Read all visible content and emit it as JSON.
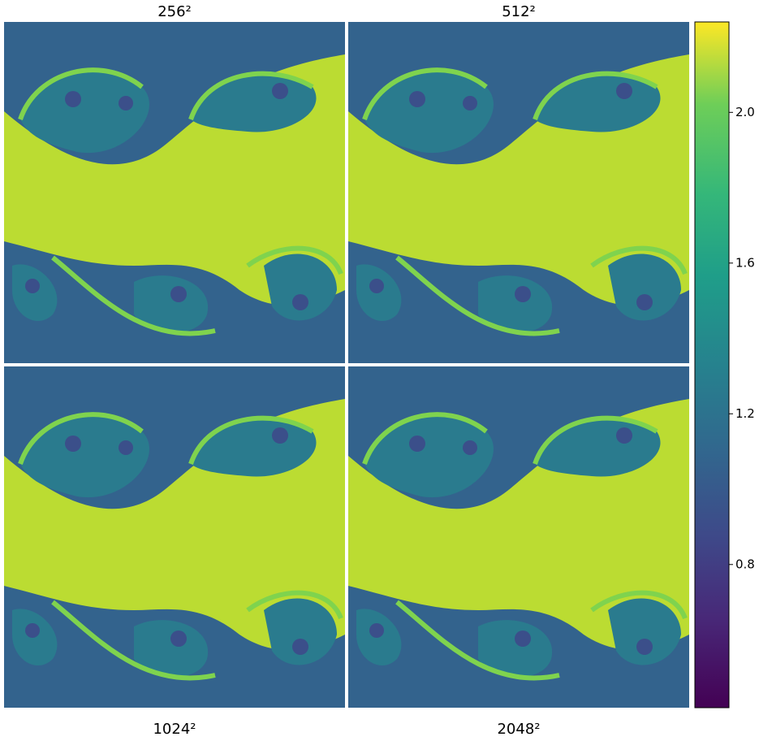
{
  "chart_data": {
    "type": "image-grid",
    "panels": [
      {
        "title": "256²"
      },
      {
        "title": "512²"
      },
      {
        "title": "1024²"
      },
      {
        "title": "2048²"
      }
    ],
    "ylim": [
      0.42,
      2.24
    ],
    "yticks": [
      0.8,
      1.2,
      1.6,
      {
        "value": 2,
        "label": "2.0"
      }
    ]
  }
}
